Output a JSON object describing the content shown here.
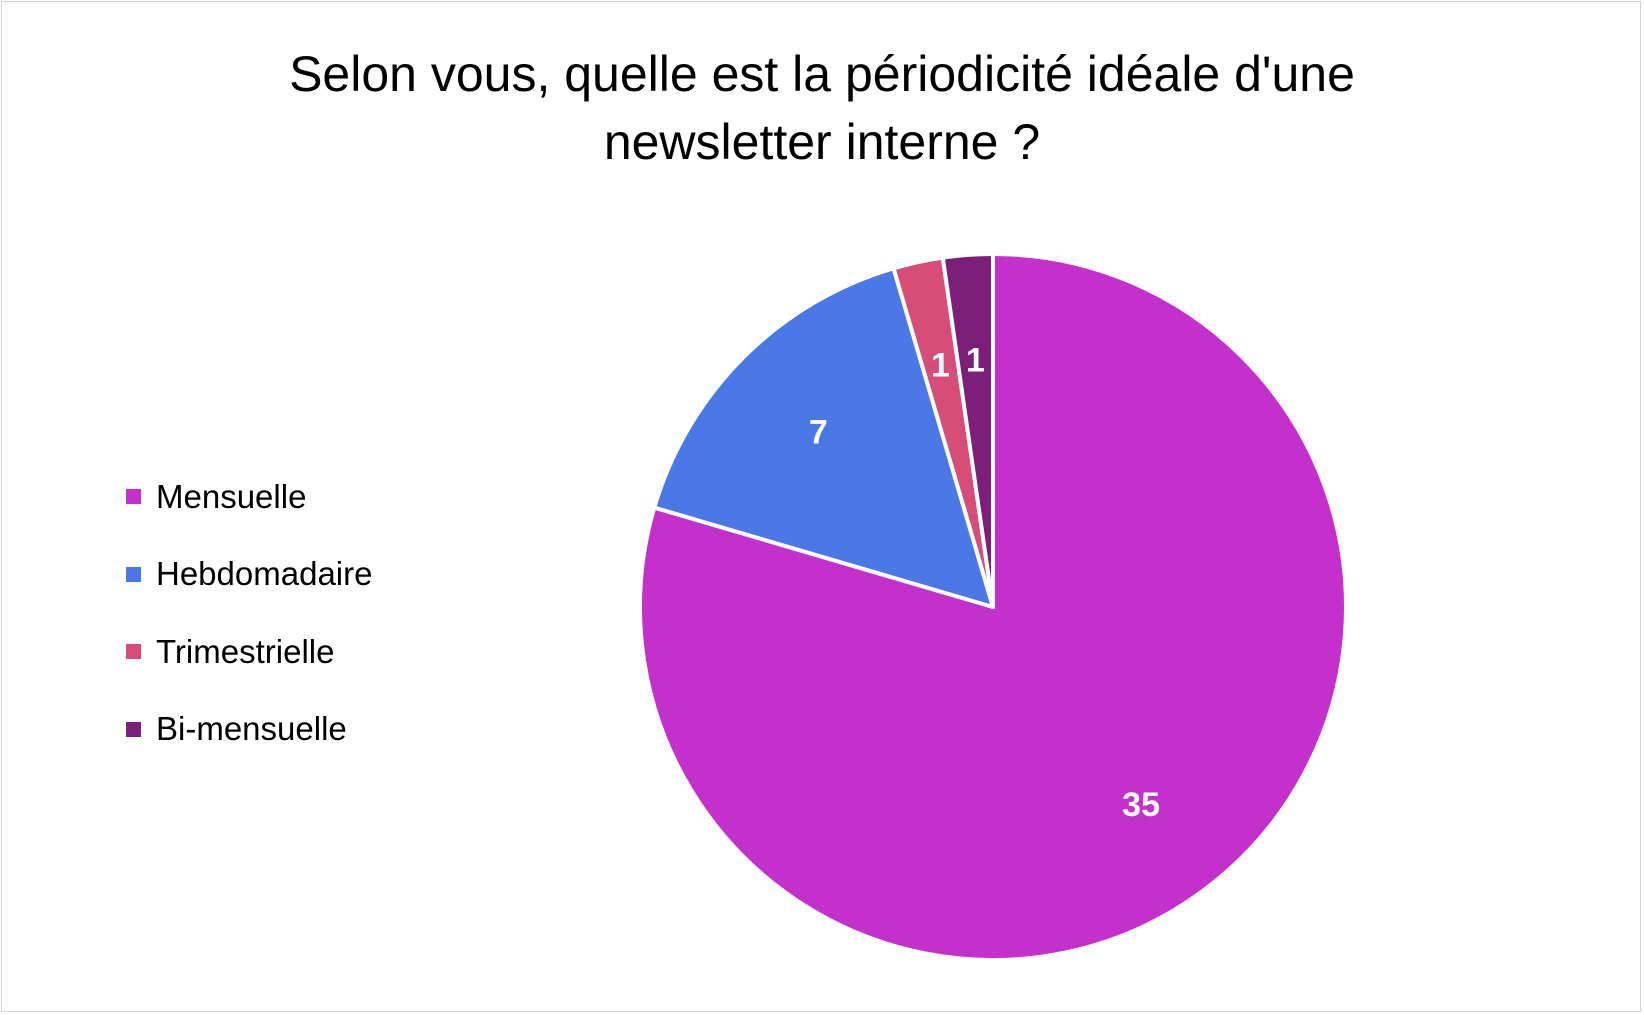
{
  "chart_data": {
    "type": "pie",
    "title_lines": [
      "Selon vous, quelle est la périodicité idéale d'une",
      "newsletter interne ?"
    ],
    "categories": [
      "Mensuelle",
      "Hebdomadaire",
      "Trimestrielle",
      "Bi-mensuelle"
    ],
    "values": [
      35,
      7,
      1,
      1
    ],
    "colors": [
      "#c430cc",
      "#4a78e6",
      "#d64d7a",
      "#7b1f78"
    ],
    "legend_position": "left",
    "start_angle": "top",
    "direction": "clockwise"
  }
}
